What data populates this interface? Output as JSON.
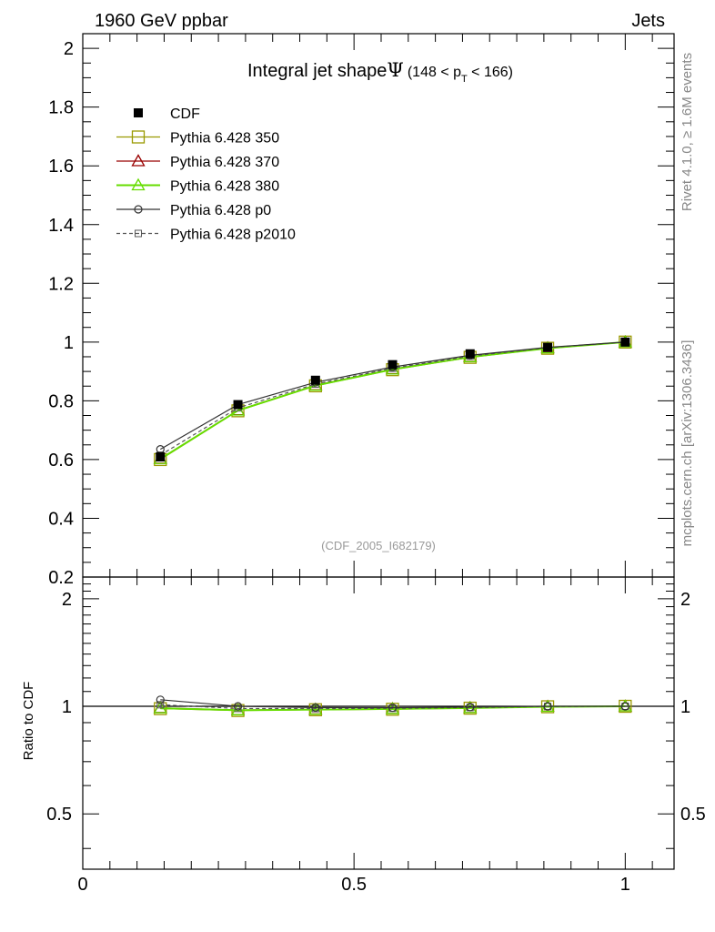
{
  "header": {
    "left": "1960 GeV ppbar",
    "right": "Jets"
  },
  "side_text": {
    "rivet": "Rivet 4.1.0, ≥ 1.6M events",
    "mcplots": "mcplots.cern.ch [arXiv:1306.3436]"
  },
  "watermark": "(CDF_2005_I682179)",
  "chart_data": [
    {
      "type": "line",
      "title": "Integral jet shapeΨ (148 < p_T < 166)",
      "title_main": "Integral jet shape",
      "title_psi": "Ψ",
      "title_range_a": "(148 < p",
      "title_range_sub": "T",
      "title_range_b": " < 166)",
      "xlabel": "",
      "ylabel": "",
      "xlim": [
        0,
        1.09
      ],
      "ylim": [
        0.2,
        2.05
      ],
      "x_ticks": [
        0,
        0.5,
        1
      ],
      "x_tick_labels": [
        "0",
        "0.5",
        "1"
      ],
      "y_ticks": [
        0.2,
        0.4,
        0.6,
        0.8,
        1,
        1.2,
        1.4,
        1.6,
        1.8,
        2
      ],
      "y_tick_labels": [
        "0.2",
        "0.4",
        "0.6",
        "0.8",
        "1",
        "1.2",
        "1.4",
        "1.6",
        "1.8",
        "2"
      ],
      "legend_position": "top-left",
      "x": [
        0.143,
        0.286,
        0.429,
        0.571,
        0.714,
        0.857,
        1.0
      ],
      "series": [
        {
          "name": "CDF",
          "color": "#000000",
          "marker": "filled-square",
          "line": "none",
          "values": [
            0.609,
            0.787,
            0.87,
            0.923,
            0.96,
            0.982,
            1.0
          ]
        },
        {
          "name": "Pythia 6.428 350",
          "color": "#999900",
          "marker": "open-square",
          "line": "solid",
          "values": [
            0.6,
            0.766,
            0.851,
            0.906,
            0.948,
            0.979,
            1.0
          ]
        },
        {
          "name": "Pythia 6.428 370",
          "color": "#990000",
          "marker": "open-triangle",
          "line": "solid",
          "values": [
            0.603,
            0.768,
            0.853,
            0.908,
            0.95,
            0.98,
            1.0
          ]
        },
        {
          "name": "Pythia 6.428 380",
          "color": "#66dd00",
          "marker": "open-triangle",
          "line": "solid",
          "values": [
            0.602,
            0.767,
            0.852,
            0.907,
            0.949,
            0.979,
            1.0
          ]
        },
        {
          "name": "Pythia 6.428 p0",
          "color": "#333333",
          "marker": "open-circle",
          "line": "solid",
          "values": [
            0.635,
            0.787,
            0.863,
            0.915,
            0.955,
            0.982,
            1.0
          ]
        },
        {
          "name": "Pythia 6.428 p2010",
          "color": "#555555",
          "marker": "open-square-small",
          "line": "dashed",
          "values": [
            0.615,
            0.776,
            0.857,
            0.911,
            0.952,
            0.981,
            1.0
          ]
        }
      ]
    },
    {
      "type": "line",
      "ylabel": "Ratio to CDF",
      "xlim": [
        0,
        1.09
      ],
      "ylim": [
        0.35,
        2.3
      ],
      "x_ticks": [
        0,
        0.5,
        1
      ],
      "x_tick_labels": [
        "0",
        "0.5",
        "1"
      ],
      "y_ticks": [
        0.5,
        1,
        2
      ],
      "y_tick_labels": [
        "0.5",
        "1",
        "2"
      ],
      "reference_line": 1,
      "x": [
        0.143,
        0.286,
        0.429,
        0.571,
        0.714,
        0.857,
        1.0
      ],
      "series": [
        {
          "name": "Pythia 6.428 350",
          "values": [
            0.985,
            0.973,
            0.978,
            0.981,
            0.988,
            0.997,
            1.0
          ]
        },
        {
          "name": "Pythia 6.428 370",
          "values": [
            0.99,
            0.976,
            0.98,
            0.984,
            0.99,
            0.998,
            1.0
          ]
        },
        {
          "name": "Pythia 6.428 380",
          "values": [
            0.988,
            0.975,
            0.979,
            0.983,
            0.989,
            0.997,
            1.0
          ]
        },
        {
          "name": "Pythia 6.428 p0",
          "values": [
            1.043,
            1.0,
            0.992,
            0.991,
            0.995,
            1.0,
            1.0
          ]
        },
        {
          "name": "Pythia 6.428 p2010",
          "values": [
            1.01,
            0.986,
            0.985,
            0.987,
            0.992,
            0.999,
            1.0
          ]
        }
      ]
    }
  ]
}
